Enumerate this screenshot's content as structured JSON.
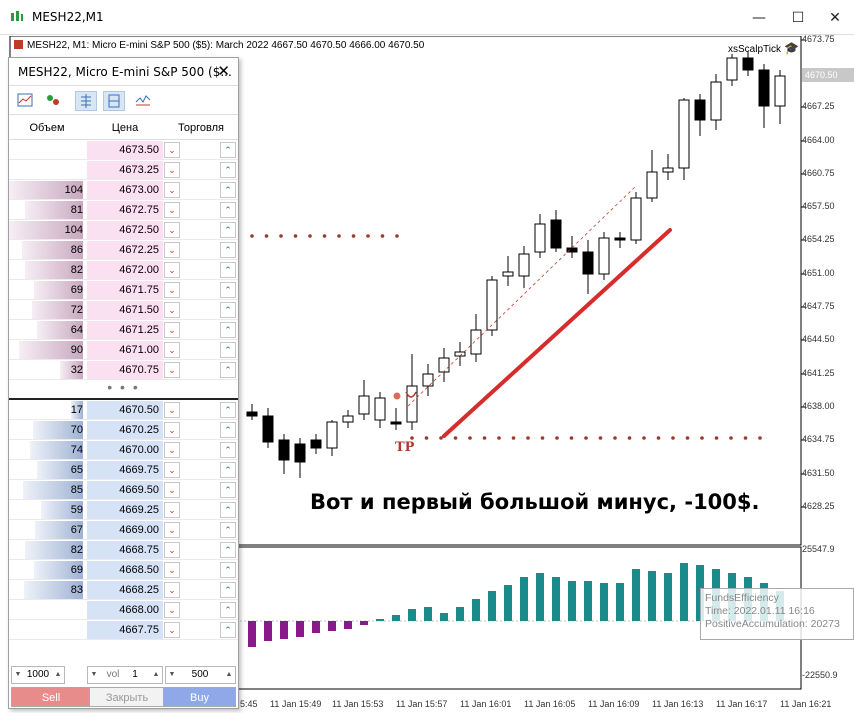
{
  "window": {
    "title": "MESH22,M1",
    "minimize": "—",
    "maximize": "☐",
    "close": "✕"
  },
  "chart": {
    "info": "MESH22, M1:  Micro E-mini S&P 500 ($5): March 2022  4667.50 4670.50 4666.00 4670.50",
    "expert": "xsScalpTick",
    "caption": "Вот и первый большой минус, -100$.",
    "tp_label": "TP",
    "current_price": "4670.50",
    "price_axis": [
      "4673.75",
      "4667.25",
      "4664.00",
      "4660.75",
      "4657.50",
      "4654.25",
      "4651.00",
      "4647.75",
      "4644.50",
      "4641.25",
      "4638.00",
      "4634.75",
      "4631.50",
      "4628.25"
    ],
    "indicator_axis": [
      "25547.9",
      "-22550.9"
    ],
    "time_axis": [
      "5:45",
      "11 Jan 15:49",
      "11 Jan 15:53",
      "11 Jan 15:57",
      "11 Jan 16:01",
      "11 Jan 16:05",
      "11 Jan 16:09",
      "11 Jan 16:13",
      "11 Jan 16:17",
      "11 Jan 16:21"
    ],
    "tooltip": {
      "line1": "FundsEfficiency",
      "line2": "Time: 2022.01.11 16:16",
      "line3": "PositiveAccumulation: 20273"
    },
    "colors": {
      "loss_line": "#d62c2c",
      "dotted_levels": "#9a3a2a",
      "positive_hist": "#1a8a8a",
      "negative_hist": "#8a1a8a"
    }
  },
  "dom": {
    "title": "MESH22, Micro E-mini S&P 500 ($...",
    "close_icon": "✕",
    "headers": {
      "volume": "Объем",
      "price": "Цена",
      "trade": "Торговля"
    },
    "asks": [
      {
        "vol": "",
        "price": "4673.50"
      },
      {
        "vol": "",
        "price": "4673.25"
      },
      {
        "vol": "104",
        "price": "4673.00"
      },
      {
        "vol": "81",
        "price": "4672.75"
      },
      {
        "vol": "104",
        "price": "4672.50"
      },
      {
        "vol": "86",
        "price": "4672.25"
      },
      {
        "vol": "82",
        "price": "4672.00"
      },
      {
        "vol": "69",
        "price": "4671.75"
      },
      {
        "vol": "72",
        "price": "4671.50"
      },
      {
        "vol": "64",
        "price": "4671.25"
      },
      {
        "vol": "90",
        "price": "4671.00"
      },
      {
        "vol": "32",
        "price": "4670.75"
      }
    ],
    "dots": "• • •",
    "bids": [
      {
        "vol": "17",
        "price": "4670.50"
      },
      {
        "vol": "70",
        "price": "4670.25"
      },
      {
        "vol": "74",
        "price": "4670.00"
      },
      {
        "vol": "65",
        "price": "4669.75"
      },
      {
        "vol": "85",
        "price": "4669.50"
      },
      {
        "vol": "59",
        "price": "4669.25"
      },
      {
        "vol": "67",
        "price": "4669.00"
      },
      {
        "vol": "82",
        "price": "4668.75"
      },
      {
        "vol": "69",
        "price": "4668.50"
      },
      {
        "vol": "83",
        "price": "4668.25"
      },
      {
        "vol": "",
        "price": "4668.00"
      },
      {
        "vol": "",
        "price": "4667.75"
      }
    ],
    "lot": "1000",
    "vol_label": "vol",
    "vol_value": "1",
    "qty": "500",
    "sell": "Sell",
    "close_position": "Закрыть",
    "buy": "Buy"
  }
}
